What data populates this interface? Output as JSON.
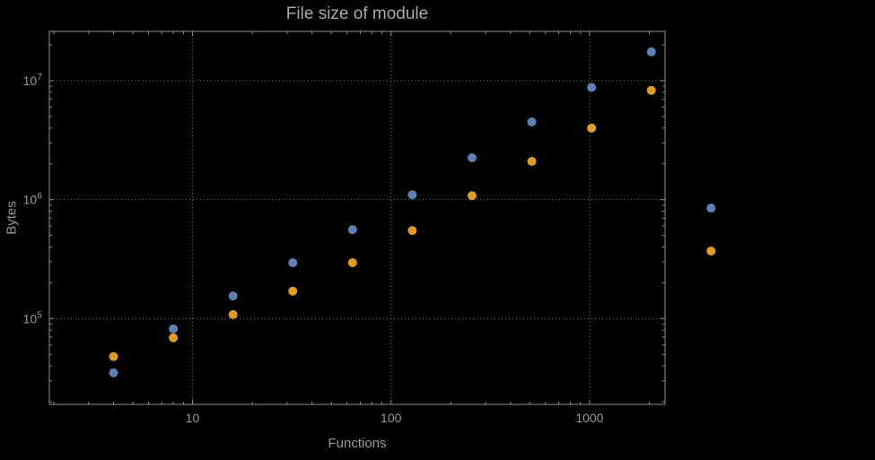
{
  "page": {
    "background": "#000000"
  },
  "chart_data": {
    "type": "scatter",
    "title": "File size of module",
    "xlabel": "Functions",
    "ylabel": "Bytes",
    "xscale": "log",
    "yscale": "log",
    "grid": true,
    "grid_style": "dotted",
    "legend": "none",
    "xlim": [
      1.9,
      2400
    ],
    "ylim": [
      19000,
      26000000
    ],
    "x": [
      4,
      8,
      16,
      32,
      64,
      128,
      256,
      512,
      1024,
      2048,
      4096
    ],
    "series": [
      {
        "name": "blue",
        "color": "#5e81b5",
        "values": [
          35000,
          82000,
          155000,
          295000,
          560000,
          1100000,
          2250000,
          4500000,
          8800000,
          17500000,
          850000
        ]
      },
      {
        "name": "orange",
        "color": "#e19c24",
        "values": [
          48000,
          69000,
          108000,
          170000,
          295000,
          550000,
          1080000,
          2100000,
          4000000,
          8300000,
          370000
        ]
      }
    ],
    "x_ticks": [
      10,
      100,
      1000
    ],
    "x_tick_labels": [
      "10",
      "100",
      "1000"
    ],
    "y_ticks": [
      100000,
      1000000,
      10000000
    ],
    "y_tick_labels": [
      {
        "base": "10",
        "exp": "5"
      },
      {
        "base": "10",
        "exp": "6"
      },
      {
        "base": "10",
        "exp": "7"
      }
    ]
  },
  "style": {
    "text_color": "#999999",
    "title_color": "#a8a8a8",
    "grid_color": "#7a7a7a",
    "frame_color": "#8f8f8f",
    "point_radius": 5
  }
}
